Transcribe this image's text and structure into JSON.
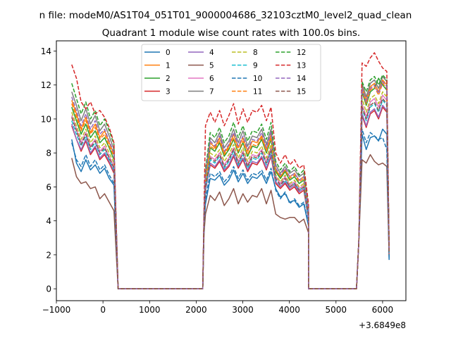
{
  "suptitle": "n file: modeM0/AS1T04_051T01_9000004686_32103cztM0_level2_quad_clean",
  "chart_data": {
    "type": "line",
    "title": "Quadrant 1 module wise count rates with 100.0s bins.",
    "xlabel": "",
    "ylabel": "",
    "xlim": [
      -1000,
      6500
    ],
    "ylim": [
      -0.7,
      14.6
    ],
    "x_offset_label": "+3.6849e8",
    "x_ticks": [
      -1000,
      0,
      1000,
      2000,
      3000,
      4000,
      5000,
      6000
    ],
    "x_tick_labels": [
      "−1000",
      "0",
      "1000",
      "2000",
      "3000",
      "4000",
      "5000",
      "6000"
    ],
    "y_ticks": [
      0,
      2,
      4,
      6,
      8,
      10,
      12,
      14
    ],
    "y_tick_labels": [
      "0",
      "2",
      "4",
      "6",
      "8",
      "10",
      "12",
      "14"
    ],
    "legend_position": "upper-center",
    "segments": [
      {
        "x_start": -670,
        "x_end": 235,
        "inter_start": 325
      },
      {
        "x_start": 2140,
        "x_end": 4350,
        "inter_start": 2170,
        "inter_end": 4410
      },
      {
        "x_start": 5560,
        "x_end": 6090,
        "inter_start": 5440,
        "inter_end": 6140
      }
    ],
    "zero_ranges": [
      [
        325,
        2140
      ],
      [
        4410,
        5440
      ]
    ],
    "series": [
      {
        "name": "0",
        "color": "#1f77b4",
        "dash": "solid",
        "seg1": [
          8.8,
          7.4,
          6.9,
          7.6,
          7.0,
          7.3,
          6.8,
          7.1,
          6.5,
          6.1
        ],
        "seg2": [
          3.8,
          5.0,
          6.5,
          6.4,
          6.7,
          6.1,
          6.4,
          7.0,
          6.3,
          6.8,
          6.2,
          6.6,
          6.5,
          6.8,
          6.2,
          6.9,
          5.9,
          5.4,
          5.6,
          5.1,
          5.2,
          4.8,
          5.0,
          3.7
        ],
        "seg3": [
          9.1,
          8.2,
          8.9,
          9.0,
          8.7,
          9.4,
          9.1,
          1.7
        ]
      },
      {
        "name": "1",
        "color": "#ff7f0e",
        "dash": "solid",
        "seg1": [
          11.1,
          10.3,
          9.4,
          10.1,
          9.2,
          9.7,
          8.9,
          9.3,
          8.6,
          7.9
        ],
        "seg2": [
          4.4,
          6.6,
          8.6,
          8.3,
          8.9,
          8.0,
          8.4,
          9.1,
          8.3,
          8.9,
          8.1,
          8.7,
          8.6,
          9.0,
          8.2,
          9.1,
          7.0,
          6.6,
          7.0,
          6.6,
          6.8,
          6.4,
          6.6,
          4.6
        ],
        "seg3": [
          11.9,
          11.1,
          11.9,
          12.1,
          11.6,
          12.3,
          12.0,
          2.3
        ]
      },
      {
        "name": "2",
        "color": "#2ca02c",
        "dash": "solid",
        "seg1": [
          10.7,
          9.9,
          9.1,
          9.7,
          8.9,
          9.3,
          8.6,
          8.9,
          8.3,
          7.6
        ],
        "seg2": [
          4.3,
          6.4,
          8.3,
          8.1,
          8.6,
          7.8,
          8.2,
          8.8,
          8.0,
          8.6,
          7.8,
          8.4,
          8.3,
          8.8,
          8.0,
          8.8,
          6.9,
          6.5,
          6.9,
          6.4,
          6.6,
          6.2,
          6.4,
          4.5
        ],
        "seg3": [
          11.6,
          10.8,
          11.6,
          11.8,
          12.4,
          12.0,
          11.7,
          2.2
        ]
      },
      {
        "name": "3",
        "color": "#d62728",
        "dash": "solid",
        "seg1": [
          9.6,
          8.8,
          8.1,
          8.7,
          7.9,
          8.3,
          7.6,
          7.9,
          7.4,
          6.8
        ],
        "seg2": [
          3.9,
          5.8,
          7.3,
          7.1,
          7.5,
          6.9,
          7.2,
          7.8,
          7.1,
          7.6,
          6.9,
          7.4,
          7.3,
          7.7,
          7.0,
          7.8,
          6.2,
          5.9,
          6.2,
          5.8,
          6.0,
          5.6,
          5.8,
          4.1
        ],
        "seg3": [
          10.2,
          9.5,
          10.3,
          10.5,
          10.0,
          10.7,
          10.4,
          2.0
        ]
      },
      {
        "name": "4",
        "color": "#9467bd",
        "dash": "solid",
        "seg1": [
          9.7,
          8.8,
          8.2,
          8.8,
          8.0,
          8.4,
          7.7,
          8.0,
          7.5,
          6.9
        ],
        "seg2": [
          3.9,
          5.8,
          7.4,
          7.2,
          7.6,
          7.0,
          7.3,
          7.9,
          7.2,
          7.7,
          7.0,
          7.5,
          7.4,
          7.8,
          7.1,
          7.9,
          6.3,
          6.0,
          6.3,
          5.9,
          6.1,
          5.7,
          5.9,
          4.1
        ],
        "seg3": [
          10.3,
          9.6,
          10.4,
          10.6,
          10.1,
          10.8,
          10.5,
          2.0
        ]
      },
      {
        "name": "5",
        "color": "#8c564b",
        "dash": "solid",
        "seg1": [
          7.7,
          6.6,
          6.2,
          6.3,
          5.9,
          6.0,
          5.3,
          5.6,
          5.1,
          4.6
        ],
        "seg2": [
          3.3,
          4.4,
          5.5,
          5.2,
          5.7,
          4.9,
          5.3,
          5.9,
          5.0,
          5.6,
          5.1,
          5.5,
          5.4,
          5.9,
          5.0,
          5.8,
          4.4,
          4.2,
          4.1,
          4.2,
          4.2,
          3.9,
          4.1,
          3.3
        ],
        "seg3": [
          7.6,
          7.4,
          7.9,
          7.5,
          7.3,
          7.4,
          7.2,
          1.9
        ]
      },
      {
        "name": "6",
        "color": "#e377c2",
        "dash": "solid",
        "seg1": [
          10.2,
          9.4,
          8.6,
          9.2,
          8.4,
          8.8,
          8.1,
          8.4,
          7.8,
          7.2
        ],
        "seg2": [
          4.1,
          6.1,
          7.8,
          7.6,
          8.0,
          7.3,
          7.7,
          8.3,
          7.5,
          8.1,
          7.3,
          7.9,
          7.8,
          8.2,
          7.5,
          8.3,
          6.6,
          6.2,
          6.6,
          6.1,
          6.3,
          5.9,
          6.1,
          4.3
        ],
        "seg3": [
          10.9,
          10.1,
          11.0,
          11.2,
          10.7,
          11.4,
          11.1,
          2.1
        ]
      },
      {
        "name": "7",
        "color": "#7f7f7f",
        "dash": "solid",
        "seg1": [
          11.6,
          10.8,
          9.9,
          10.6,
          9.7,
          10.2,
          9.3,
          9.7,
          9.0,
          8.2
        ],
        "seg2": [
          4.5,
          6.8,
          8.9,
          8.6,
          9.2,
          8.3,
          8.7,
          9.4,
          8.6,
          9.3,
          8.4,
          9.0,
          8.9,
          9.4,
          8.5,
          9.4,
          7.3,
          6.8,
          7.2,
          6.8,
          7.0,
          6.6,
          6.8,
          4.7
        ],
        "seg3": [
          12.1,
          11.3,
          12.1,
          12.3,
          11.8,
          12.5,
          12.2,
          2.3
        ]
      },
      {
        "name": "8",
        "color": "#bcbd22",
        "dash": "dashed",
        "seg1": [
          10.4,
          9.6,
          8.8,
          9.4,
          8.6,
          9.0,
          8.3,
          8.6,
          8.0,
          7.4
        ],
        "seg2": [
          4.2,
          6.2,
          8.0,
          7.8,
          8.2,
          7.5,
          7.9,
          8.5,
          7.7,
          8.3,
          7.5,
          8.1,
          8.0,
          8.4,
          7.7,
          8.5,
          6.7,
          6.3,
          6.7,
          6.2,
          6.4,
          6.0,
          6.2,
          4.4
        ],
        "seg3": [
          11.2,
          10.4,
          11.2,
          11.4,
          10.9,
          11.6,
          11.3,
          2.1
        ]
      },
      {
        "name": "9",
        "color": "#17becf",
        "dash": "dashed",
        "seg1": [
          9.9,
          9.1,
          8.4,
          9.0,
          8.2,
          8.6,
          7.9,
          8.2,
          7.6,
          7.0
        ],
        "seg2": [
          4.0,
          5.9,
          7.6,
          7.4,
          7.8,
          7.1,
          7.5,
          8.1,
          7.3,
          7.9,
          7.1,
          7.7,
          7.6,
          8.0,
          7.3,
          8.1,
          6.4,
          6.1,
          6.4,
          6.0,
          6.2,
          5.8,
          6.0,
          4.2
        ],
        "seg3": [
          10.6,
          9.9,
          10.7,
          10.9,
          10.4,
          11.1,
          10.8,
          2.0
        ]
      },
      {
        "name": "10",
        "color": "#1f77b4",
        "dash": "dashed",
        "seg1": [
          8.6,
          7.6,
          7.2,
          7.9,
          7.2,
          7.6,
          7.0,
          7.3,
          6.7,
          6.2
        ],
        "seg2": [
          3.7,
          5.3,
          6.8,
          6.6,
          6.9,
          6.3,
          6.6,
          7.2,
          6.5,
          7.0,
          6.4,
          6.8,
          6.7,
          7.0,
          6.4,
          7.1,
          5.8,
          5.3,
          5.7,
          5.0,
          5.3,
          4.9,
          5.1,
          3.8
        ],
        "seg3": [
          9.4,
          8.6,
          9.2,
          9.0,
          8.8,
          8.9,
          8.2,
          1.8
        ]
      },
      {
        "name": "11",
        "color": "#ff7f0e",
        "dash": "dashed",
        "seg1": [
          10.9,
          10.1,
          9.3,
          9.9,
          9.1,
          9.5,
          8.8,
          9.1,
          8.4,
          7.8
        ],
        "seg2": [
          4.3,
          6.5,
          8.4,
          8.2,
          8.7,
          7.9,
          8.3,
          8.9,
          8.1,
          8.7,
          7.9,
          8.5,
          8.4,
          8.9,
          8.1,
          8.9,
          7.0,
          6.6,
          7.0,
          6.5,
          6.7,
          6.3,
          6.5,
          4.6
        ],
        "seg3": [
          11.7,
          10.9,
          11.7,
          11.9,
          11.4,
          12.1,
          11.8,
          2.2
        ]
      },
      {
        "name": "12",
        "color": "#2ca02c",
        "dash": "dashed",
        "seg1": [
          12.1,
          11.2,
          10.3,
          11.0,
          10.0,
          10.5,
          9.6,
          10.0,
          9.3,
          8.5
        ],
        "seg2": [
          4.6,
          7.0,
          9.2,
          8.9,
          9.5,
          8.6,
          9.0,
          9.8,
          8.9,
          9.6,
          8.7,
          9.3,
          9.2,
          9.7,
          8.8,
          9.8,
          7.5,
          7.0,
          7.4,
          6.9,
          7.2,
          6.7,
          7.0,
          4.8
        ],
        "seg3": [
          12.2,
          11.6,
          12.3,
          12.5,
          12.0,
          12.6,
          12.3,
          2.4
        ]
      },
      {
        "name": "13",
        "color": "#d62728",
        "dash": "dashed",
        "seg1": [
          13.2,
          12.4,
          11.0,
          10.6,
          11.0,
          10.3,
          10.5,
          10.1,
          9.5,
          8.6
        ],
        "seg2": [
          4.9,
          9.6,
          10.4,
          9.8,
          10.5,
          9.6,
          10.2,
          10.9,
          9.7,
          10.6,
          9.8,
          10.5,
          10.4,
          10.8,
          9.9,
          10.7,
          8.0,
          7.4,
          7.9,
          7.3,
          7.6,
          7.1,
          7.3,
          5.0
        ],
        "seg3": [
          13.3,
          13.1,
          13.6,
          13.9,
          13.4,
          13.0,
          12.8,
          2.4
        ]
      },
      {
        "name": "14",
        "color": "#9467bd",
        "dash": "dashed",
        "seg1": [
          11.3,
          10.5,
          9.6,
          10.3,
          9.4,
          9.9,
          9.1,
          9.4,
          8.7,
          8.0
        ],
        "seg2": [
          4.4,
          6.7,
          8.7,
          8.4,
          9.0,
          8.1,
          8.5,
          9.2,
          8.4,
          9.0,
          8.2,
          8.8,
          8.7,
          9.2,
          8.3,
          9.2,
          7.1,
          6.7,
          7.1,
          6.6,
          6.8,
          6.4,
          6.6,
          4.6
        ],
        "seg3": [
          11.8,
          11.0,
          11.8,
          12.0,
          11.5,
          12.2,
          11.9,
          2.2
        ]
      },
      {
        "name": "15",
        "color": "#8c564b",
        "dash": "dashed",
        "seg1": [
          10.1,
          9.3,
          8.5,
          9.1,
          8.3,
          8.7,
          8.0,
          8.3,
          7.7,
          7.1
        ],
        "seg2": [
          4.1,
          6.0,
          7.7,
          7.5,
          7.9,
          7.2,
          7.6,
          8.2,
          7.4,
          8.0,
          7.2,
          7.8,
          7.7,
          8.1,
          7.4,
          8.2,
          6.5,
          6.1,
          6.5,
          6.0,
          6.2,
          5.8,
          6.0,
          4.3
        ],
        "seg3": [
          10.7,
          10.0,
          10.8,
          11.0,
          10.5,
          11.2,
          10.9,
          2.1
        ]
      }
    ]
  }
}
